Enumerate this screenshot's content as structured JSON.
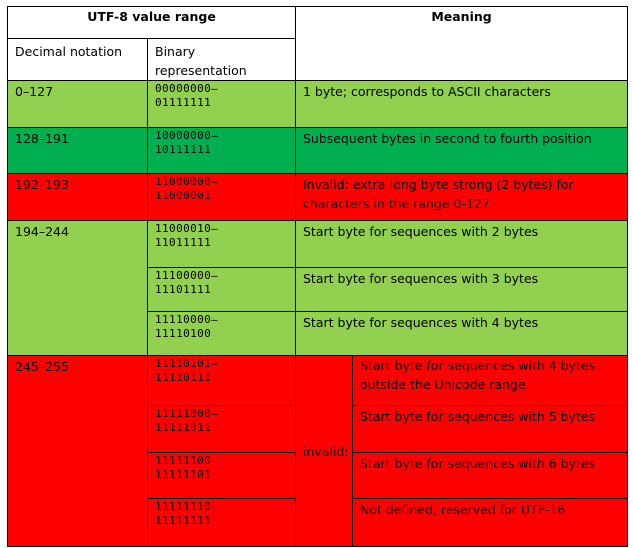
{
  "colors": {
    "light_green": "#92d050",
    "dark_green": "#00b050",
    "red": "#ff0000",
    "border": "#000000"
  },
  "header": {
    "range_title": "UTF-8 value range",
    "meaning_title": "Meaning",
    "decimal_col": "Decimal notation",
    "binary_col": "Binary representation"
  },
  "rows": [
    {
      "decimal": "0–127",
      "binary_from": "00000000–",
      "binary_to": "01111111",
      "meaning": "1 byte; corresponds to ASCII characters"
    },
    {
      "decimal": "128–191",
      "binary_from": "10000000–",
      "binary_to": "10111111",
      "meaning": "Subsequent bytes in second to fourth position"
    },
    {
      "decimal": "192–193",
      "binary_from": "11000000–",
      "binary_to": "11000001",
      "meaning": "Invalid: extra-long byte strong (2 bytes) for characters in the range 0-127"
    }
  ],
  "start_group": {
    "decimal": "194–244",
    "rows": [
      {
        "binary_from": "11000010–",
        "binary_to": "11011111",
        "meaning": "Start byte for sequences with 2 bytes"
      },
      {
        "binary_from": "11100000–",
        "binary_to": "11101111",
        "meaning": "Start byte for sequences with 3 bytes"
      },
      {
        "binary_from": "11110000–",
        "binary_to": "11110100",
        "meaning": "Start byte for sequences with 4 bytes"
      }
    ]
  },
  "invalid_group": {
    "decimal": "245–255",
    "label": "invalid:",
    "rows": [
      {
        "binary_from": "11110101–",
        "binary_to": "11110111",
        "meaning": "Start byte for sequences with 4 bytes outside the Unicode range"
      },
      {
        "binary_from": "11111000–",
        "binary_to": "11111011",
        "meaning": "Start byte for sequences with 5 bytes"
      },
      {
        "binary_from": "11111100–",
        "binary_to": "11111101",
        "meaning": "Start byte for sequences with 6 bytes"
      },
      {
        "binary_from": "11111110–",
        "binary_to": "11111111",
        "meaning": "Not defined, reserved for UTF-16"
      }
    ]
  }
}
